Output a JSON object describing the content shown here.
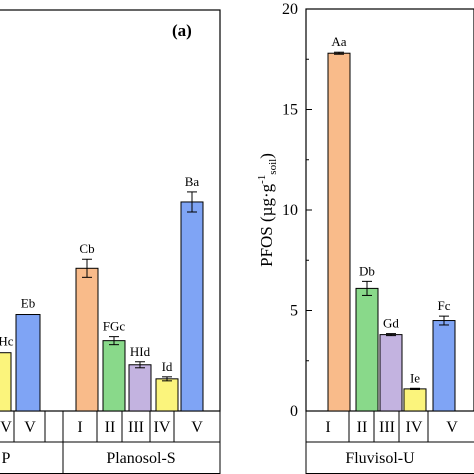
{
  "chart_data": [
    {
      "type": "bar",
      "panel_label": "(a)",
      "groups": [
        {
          "name": "P",
          "categories": [
            "V"
          ],
          "values": [
            4.8
          ],
          "errors": [
            0
          ],
          "labels": [
            "Eb"
          ],
          "colors": [
            "#7fa4f5"
          ]
        },
        {
          "name": "Planosol-S",
          "categories": [
            "I",
            "II",
            "III",
            "IV",
            "V"
          ],
          "values": [
            7.1,
            3.5,
            2.3,
            1.6,
            10.4
          ],
          "errors": [
            0.45,
            0.2,
            0.15,
            0.1,
            0.5
          ],
          "labels": [
            "Cb",
            "FGc",
            "HId",
            "Id",
            "Ba"
          ],
          "colors": [
            "#f9bb8a",
            "#89d98a",
            "#c3b3e0",
            "#fbf47c",
            "#7fa4f5"
          ]
        }
      ],
      "partial": {
        "tick_labels": [
          "V"
        ],
        "bar_value": 2.9,
        "bar_label": "Hc",
        "bar_color": "#fbf47c"
      }
    },
    {
      "type": "bar",
      "ylabel": "PFOS (µg·g",
      "ylabel_sup": "-1",
      "ylabel_sub": "soil",
      "ylabel_close": ")",
      "ylim": [
        0,
        20
      ],
      "yticks": [
        0,
        5,
        10,
        15,
        20
      ],
      "groups": [
        {
          "name": "Fluvisol-U",
          "categories": [
            "I",
            "II",
            "III",
            "IV",
            "V"
          ],
          "values": [
            17.8,
            6.1,
            3.8,
            1.1,
            4.5
          ],
          "errors": [
            0.05,
            0.35,
            0.05,
            0.03,
            0.22
          ],
          "labels": [
            "Aa",
            "Db",
            "Gd",
            "Ie",
            "Fc"
          ],
          "colors": [
            "#f9bb8a",
            "#89d98a",
            "#c3b3e0",
            "#fbf47c",
            "#7fa4f5"
          ]
        }
      ]
    }
  ]
}
